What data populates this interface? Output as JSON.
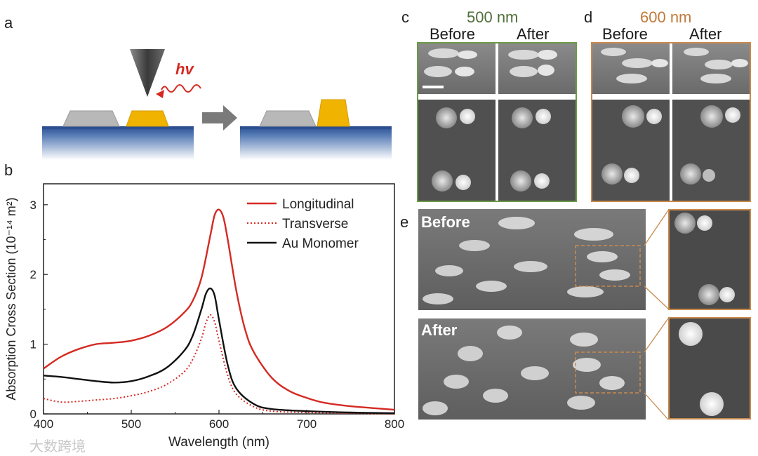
{
  "panels": {
    "a": "a",
    "b": "b",
    "c": "c",
    "d": "d",
    "e": "e"
  },
  "schematic": {
    "photon_label": "hv"
  },
  "chart_data": {
    "type": "line",
    "xlabel": "Wavelength (nm)",
    "ylabel": "Absorption Cross Section (10⁻¹⁴ m²)",
    "xlim": [
      400,
      800
    ],
    "ylim": [
      0,
      3.3
    ],
    "xticks": [
      "400",
      "500",
      "600",
      "700",
      "800"
    ],
    "yticks": [
      "0",
      "1",
      "2",
      "3"
    ],
    "legend_position": "top-right",
    "series": [
      {
        "name": "Longitudinal",
        "style": "solid",
        "color": "#d42a22",
        "x": [
          400,
          420,
          440,
          460,
          480,
          500,
          520,
          540,
          560,
          570,
          580,
          590,
          595,
          600,
          605,
          610,
          620,
          630,
          640,
          660,
          680,
          700,
          720,
          750,
          800
        ],
        "y": [
          0.65,
          0.82,
          0.93,
          1.0,
          1.02,
          1.05,
          1.12,
          1.24,
          1.45,
          1.62,
          1.95,
          2.55,
          2.85,
          2.93,
          2.82,
          2.5,
          1.75,
          1.2,
          0.88,
          0.52,
          0.33,
          0.23,
          0.16,
          0.11,
          0.06
        ]
      },
      {
        "name": "Transverse",
        "style": "dotted",
        "color": "#d42a22",
        "x": [
          400,
          420,
          440,
          460,
          480,
          500,
          520,
          540,
          560,
          570,
          580,
          585,
          590,
          595,
          600,
          610,
          620,
          640,
          660,
          700,
          750,
          800
        ],
        "y": [
          0.22,
          0.17,
          0.18,
          0.2,
          0.22,
          0.26,
          0.32,
          0.42,
          0.6,
          0.78,
          1.08,
          1.3,
          1.42,
          1.32,
          1.05,
          0.55,
          0.28,
          0.1,
          0.04,
          0.02,
          0.01,
          0.0
        ]
      },
      {
        "name": "Au Monomer",
        "style": "solid",
        "color": "#111111",
        "x": [
          400,
          420,
          440,
          460,
          480,
          500,
          520,
          540,
          560,
          570,
          580,
          585,
          590,
          595,
          600,
          610,
          620,
          640,
          660,
          700,
          750,
          800
        ],
        "y": [
          0.55,
          0.53,
          0.5,
          0.47,
          0.45,
          0.47,
          0.54,
          0.66,
          0.9,
          1.12,
          1.5,
          1.72,
          1.8,
          1.7,
          1.35,
          0.7,
          0.36,
          0.14,
          0.07,
          0.04,
          0.02,
          0.01
        ]
      }
    ]
  },
  "panel_c": {
    "title": "500 nm",
    "title_color": "#4f6f3a",
    "before": "Before",
    "after": "After"
  },
  "panel_d": {
    "title": "600 nm",
    "title_color": "#c07a3a",
    "before": "Before",
    "after": "After"
  },
  "panel_e": {
    "before": "Before",
    "after": "After"
  },
  "colors": {
    "green_frame": "#6c9a4a",
    "orange_frame": "#c98a4e",
    "gold": "#f0b400",
    "substrate": "#2f5597"
  },
  "watermark": "大数跨境"
}
